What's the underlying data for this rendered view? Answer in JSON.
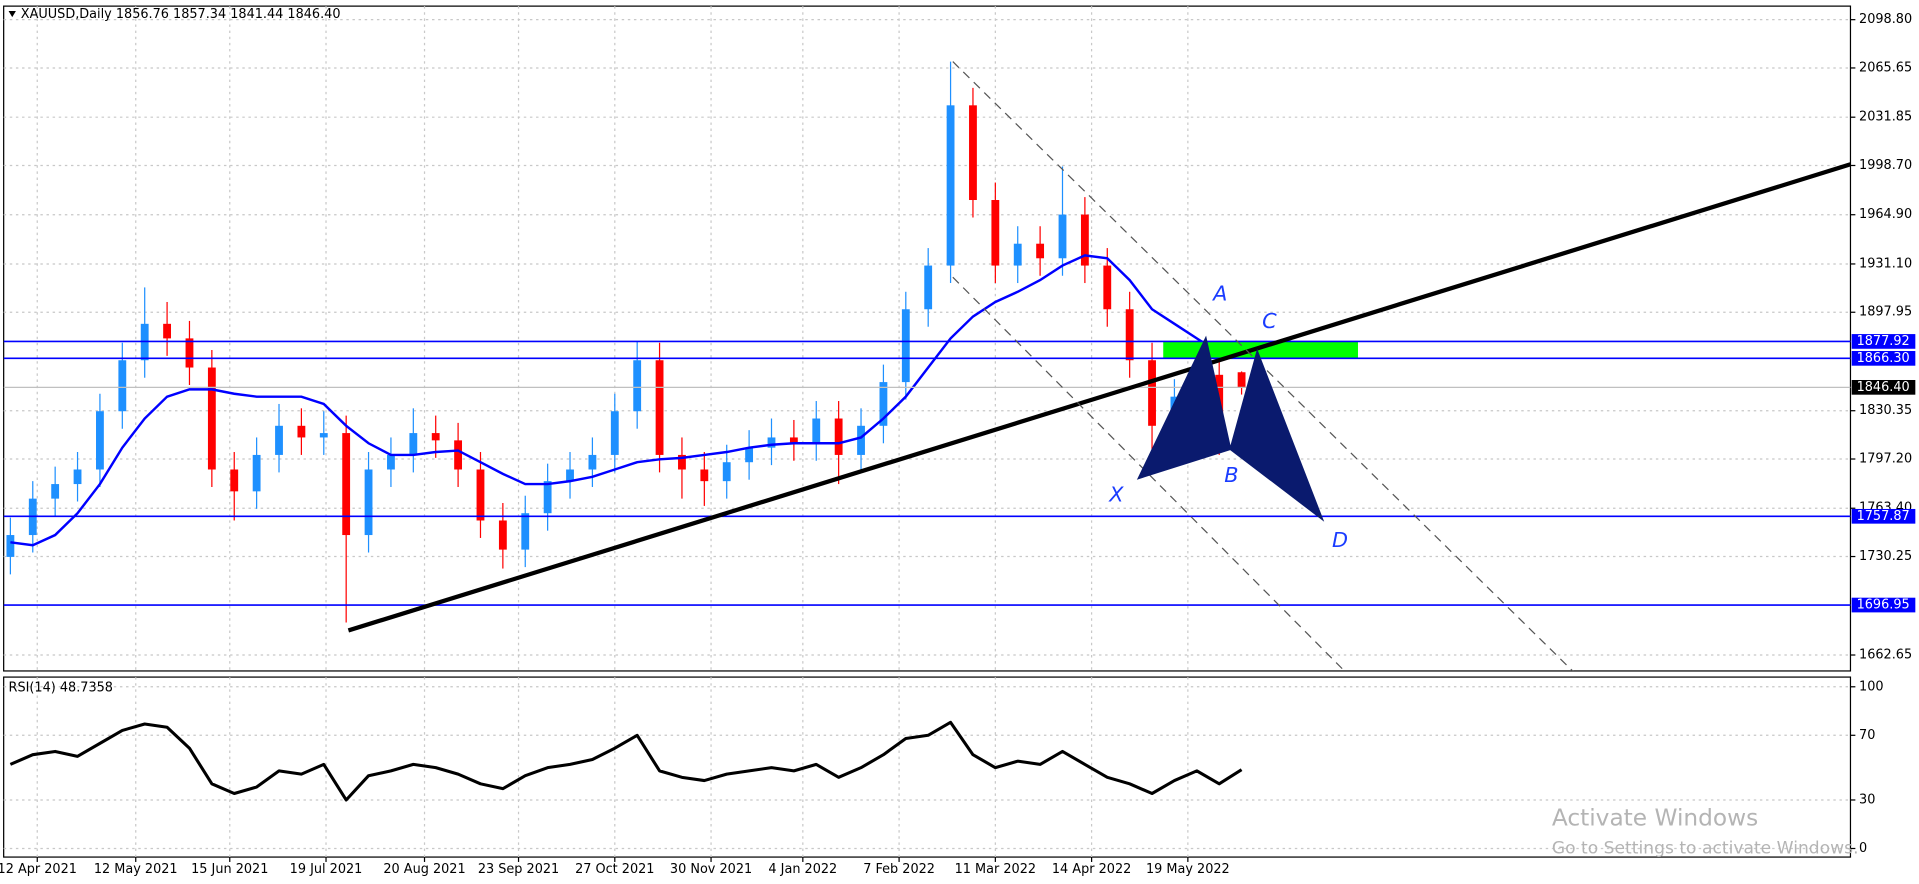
{
  "chart_data": [
    {
      "type": "candlestick",
      "title": "XAUUSD,Daily  1856.76 1857.34 1841.44 1846.40",
      "xlim": [
        -0.3,
        82.2
      ],
      "ylim": [
        1651.7,
        2108.1
      ],
      "yticks": [
        {
          "value": 2098.8,
          "label": "2098.80"
        },
        2065.65,
        2031.85,
        {
          "value": 1998.7,
          "label": "1998.70"
        },
        {
          "value": 1964.9,
          "label": "1964.90"
        },
        {
          "value": 1931.1,
          "label": "1931.10"
        },
        1897.95,
        1830.35,
        {
          "value": 1797.2,
          "label": "1797.20"
        },
        {
          "value": 1763.4,
          "label": "1763.40"
        },
        1730.25,
        1662.65
      ],
      "xticks": [
        {
          "value": 1.2,
          "label": "12 Apr 2021"
        },
        {
          "value": 5.6,
          "label": "12 May 2021"
        },
        {
          "value": 9.8,
          "label": "15 Jun 2021"
        },
        {
          "value": 14.1,
          "label": "19 Jul 2021"
        },
        {
          "value": 18.5,
          "label": "20 Aug 2021"
        },
        {
          "value": 22.7,
          "label": "23 Sep 2021"
        },
        {
          "value": 27,
          "label": "27 Oct 2021"
        },
        {
          "value": 31.3,
          "label": "30 Nov 2021"
        },
        {
          "value": 35.4,
          "label": "4 Jan 2022"
        },
        {
          "value": 39.7,
          "label": "7 Feb 2022"
        },
        {
          "value": 44,
          "label": "11 Mar 2022"
        },
        {
          "value": 48.3,
          "label": "14 Apr 2022"
        },
        {
          "value": 52.6,
          "label": "19 May 2022"
        }
      ],
      "grid": true,
      "up_color": "#1e90ff",
      "down_color": "#ff0000",
      "open": [
        1730,
        1745,
        1770,
        1780,
        1790,
        1830,
        1865,
        1890,
        1880,
        1860,
        1790,
        1775,
        1800,
        1820,
        1812,
        1815,
        1745,
        1790,
        1800,
        1815,
        1810,
        1790,
        1755,
        1735,
        1760,
        1782,
        1790,
        1800,
        1830,
        1865,
        1800,
        1790,
        1782,
        1795,
        1805,
        1812,
        1808,
        1825,
        1800,
        1820,
        1850,
        1900,
        1930,
        2040,
        1975,
        1930,
        1945,
        1935,
        1965,
        1930,
        1900,
        1865,
        1820,
        1840,
        1855,
        1856.76
      ],
      "high": [
        1757,
        1782,
        1792,
        1802,
        1842,
        1877,
        1915,
        1905,
        1892,
        1872,
        1802,
        1812,
        1835,
        1832,
        1830,
        1827,
        1802,
        1812,
        1832,
        1827,
        1822,
        1802,
        1767,
        1772,
        1794,
        1802,
        1812,
        1842,
        1878,
        1877,
        1812,
        1802,
        1807,
        1817,
        1825,
        1824,
        1837,
        1837,
        1832,
        1862,
        1912,
        1942,
        2070,
        2052,
        1987,
        1957,
        1957,
        1998,
        1977,
        1942,
        1912,
        1877,
        1852,
        1870,
        1867,
        1857.34
      ],
      "low": [
        1718,
        1733,
        1758,
        1768,
        1778,
        1818,
        1853,
        1868,
        1848,
        1778,
        1755,
        1763,
        1788,
        1800,
        1800,
        1685,
        1733,
        1778,
        1788,
        1798,
        1778,
        1743,
        1722,
        1723,
        1748,
        1770,
        1778,
        1788,
        1818,
        1788,
        1770,
        1765,
        1770,
        1783,
        1793,
        1796,
        1796,
        1780,
        1788,
        1808,
        1838,
        1888,
        1918,
        1963,
        1918,
        1918,
        1923,
        1923,
        1918,
        1888,
        1853,
        1800,
        1808,
        1828,
        1800,
        1841.44
      ],
      "close": [
        1745,
        1770,
        1780,
        1790,
        1830,
        1865,
        1890,
        1880,
        1860,
        1790,
        1775,
        1800,
        1820,
        1812,
        1815,
        1745,
        1790,
        1800,
        1815,
        1810,
        1790,
        1755,
        1735,
        1760,
        1782,
        1790,
        1800,
        1830,
        1865,
        1800,
        1790,
        1782,
        1795,
        1805,
        1812,
        1808,
        1825,
        1800,
        1820,
        1850,
        1900,
        1930,
        2040,
        1975,
        1930,
        1945,
        1935,
        1965,
        1930,
        1900,
        1865,
        1820,
        1840,
        1855,
        1812,
        1846.4
      ],
      "moving_average": {
        "color": "#0000ff",
        "values": [
          1740,
          1738,
          1745,
          1760,
          1780,
          1805,
          1825,
          1840,
          1845,
          1845,
          1842,
          1840,
          1840,
          1840,
          1835,
          1820,
          1808,
          1800,
          1800,
          1802,
          1803,
          1795,
          1787,
          1780,
          1780,
          1782,
          1785,
          1790,
          1795,
          1797,
          1798,
          1800,
          1802,
          1805,
          1807,
          1808,
          1808,
          1808,
          1812,
          1825,
          1840,
          1860,
          1880,
          1895,
          1905,
          1912,
          1920,
          1930,
          1937,
          1935,
          1920,
          1900,
          1890,
          1880,
          1870,
          1872
        ]
      },
      "levels": [
        {
          "value": 1877.92
        },
        {
          "value": 1866.3,
          "label": "1866.30"
        },
        {
          "value": 1757.87
        },
        {
          "value": 1696.95
        }
      ],
      "level_color": "#0000ff",
      "current_price": {
        "value": 1846.4,
        "label": "1846.40"
      },
      "trendlines": [
        {
          "style": "solid",
          "color": "#000000",
          "x": [
            15.1,
            82.2
          ],
          "y": [
            1679.5,
            1999.5
          ]
        },
        {
          "style": "dashed",
          "color": "#555555",
          "x": [
            42.1,
            70.1
          ],
          "y": [
            2070,
            1647
          ]
        },
        {
          "style": "dashed",
          "color": "#555555",
          "x": [
            42.1,
            59.9
          ],
          "y": [
            1922,
            1647
          ]
        }
      ],
      "zone": {
        "color": "#00ff00",
        "x": [
          51.5,
          60.2
        ],
        "y": [
          1866.3,
          1877.92
        ]
      },
      "pattern": {
        "color": "#0a1a6e",
        "label_color": "#1a3cff",
        "labels": [
          "X",
          "A",
          "B",
          "C",
          "D"
        ],
        "x": [
          50.4,
          53.4,
          54.5,
          55.7,
          58.6
        ],
        "y": [
          1784,
          1880,
          1804,
          1871,
          1756
        ]
      },
      "watermark": [
        "Activate Windows",
        "Go to Settings to activate Windows."
      ]
    },
    {
      "type": "line",
      "title": "RSI(14) 48.7358",
      "xlim": [
        -0.3,
        82.2
      ],
      "ylim": [
        -5.3,
        106
      ],
      "yticks": [
        100,
        70,
        30,
        0
      ],
      "grid": true,
      "color": "#000000",
      "values": [
        52,
        58,
        60,
        57,
        65,
        73,
        77,
        75,
        62,
        40,
        34,
        38,
        48,
        46,
        52,
        30,
        45,
        48,
        52,
        50,
        46,
        40,
        37,
        45,
        50,
        52,
        55,
        62,
        70,
        48,
        44,
        42,
        46,
        48,
        50,
        48,
        52,
        44,
        50,
        58,
        68,
        70,
        78,
        58,
        50,
        54,
        52,
        60,
        52,
        44,
        40,
        34,
        42,
        48,
        40,
        48.7358
      ]
    }
  ]
}
